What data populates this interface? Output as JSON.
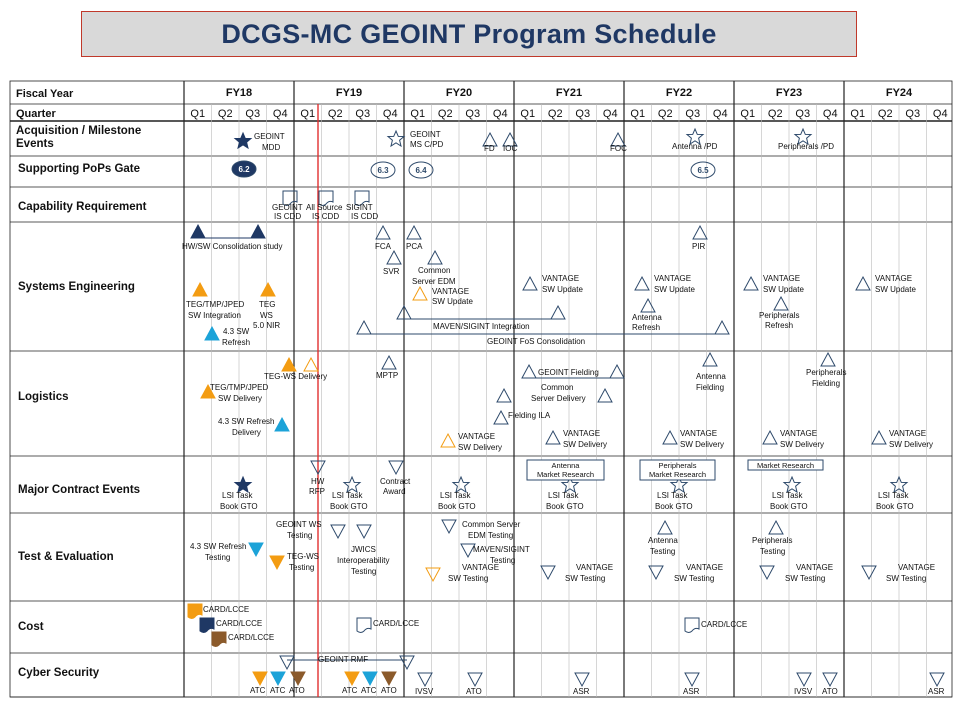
{
  "title": "DCGS-MC GEOINT Program Schedule",
  "header": {
    "fiscal_year_label": "Fiscal Year",
    "quarter_label": "Quarter",
    "years": [
      "FY18",
      "FY19",
      "FY20",
      "FY21",
      "FY22",
      "FY23",
      "FY24"
    ],
    "quarters": [
      "Q1",
      "Q2",
      "Q3",
      "Q4"
    ]
  },
  "rows": [
    "Acquisition / Milestone Events",
    "Supporting PoPs Gate",
    "Capability Requirement",
    "Systems Engineering",
    "Logistics",
    "Major Contract Events",
    "Test & Evaluation",
    "Cost",
    "Cyber Security"
  ],
  "colors": {
    "navy": "#1f3864",
    "orange": "#f39c12",
    "cyan": "#1ca3d8",
    "brown": "#8b5a2b",
    "slate": "#2e4a6b",
    "today_line": "#e03030"
  },
  "labels": {
    "acq": [
      "GEOINT MDD",
      "GEOINT MS C/PD",
      "FD",
      "IOC",
      "FOC",
      "Antenna /PD",
      "Peripherals /PD"
    ],
    "pops": [
      "6.2",
      "6.3",
      "6.4",
      "6.5"
    ],
    "cap": [
      "GEOINT IS CDD",
      "All Source IS CDD",
      "SIGINT IS CDD"
    ],
    "se": [
      "HW/SW Consolidation study",
      "FCA",
      "PCA",
      "SVR",
      "Common Server EDM",
      "VANTAGE SW Update",
      "TEG/TMP/JPED SW Integration",
      "TEG WS",
      "5.0 NIR",
      "4.3 SW Refresh",
      "MAVEN/SIGINT Integration",
      "GEOINT FoS Consolidation",
      "VANTAGE SW Update",
      "VANTAGE SW Update",
      "Antenna Refresh",
      "PIR",
      "VANTAGE SW Update",
      "Peripherals Refresh",
      "VANTAGE SW Update"
    ],
    "log": [
      "TEG-WS Delivery",
      "TEG/TMP/JPED SW Delivery",
      "4.3 SW Refresh Delivery",
      "MPTP",
      "GEOINT Fielding",
      "Common Server Delivery",
      "Fielding ILA",
      "VANTAGE SW Delivery",
      "VANTAGE SW Delivery",
      "Antenna Fielding",
      "VANTAGE SW Delivery",
      "Peripherals Fielding",
      "VANTAGE SW Delivery",
      "VANTAGE SW Delivery"
    ],
    "mce": [
      "LSI Task Book GTO",
      "HW RFP",
      "LSI Task Book GTO",
      "Contract Award",
      "LSI Task Book GTO",
      "Antenna Market Research",
      "LSI Task Book GTO",
      "Peripherals Market Research",
      "LSI Task Book GTO",
      "Market Research",
      "LSI Task Book GTO",
      "LSI Task Book GTO"
    ],
    "te": [
      "4.3 SW Refresh Testing",
      "GEOINT WS Testing",
      "TEG-WS Testing",
      "JWICS Interoperability Testing",
      "Common Server EDM Testing",
      "MAVEN/SIGINT Testing",
      "VANTAGE SW Testing",
      "VANTAGE SW Testing",
      "Antenna Testing",
      "VANTAGE SW Testing",
      "Peripherals Testing",
      "VANTAGE SW Testing",
      "VANTAGE SW Testing"
    ],
    "cost": [
      "CARD/LCCE",
      "CARD/LCCE",
      "CARD/LCCE",
      "CARD/LCCE",
      "CARD/LCCE"
    ],
    "cyber": [
      "GEOINT RMF",
      "ATC",
      "ATC",
      "ATO",
      "ATC",
      "ATC",
      "ATO",
      "IVSV",
      "ATO",
      "ASR",
      "ASR",
      "IVSV",
      "ATO",
      "ASR"
    ]
  }
}
